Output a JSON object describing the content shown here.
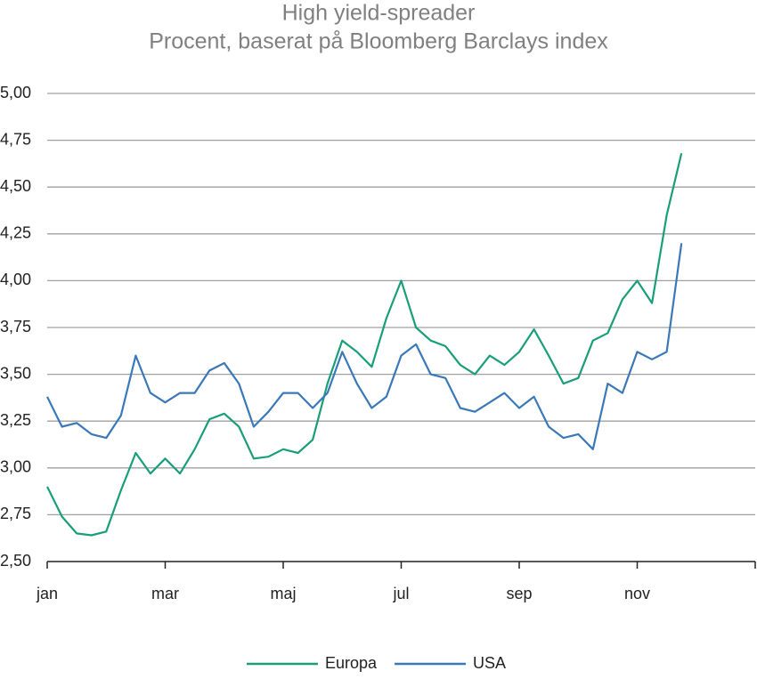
{
  "chart_data": {
    "type": "line",
    "title": "High yield-spreader",
    "subtitle": "Procent, baserat på Bloomberg Barclays index",
    "categories": [
      "jan",
      null,
      null,
      null,
      null,
      null,
      null,
      null,
      "mar",
      null,
      null,
      null,
      null,
      null,
      null,
      null,
      "maj",
      null,
      null,
      null,
      null,
      null,
      null,
      null,
      "jul",
      null,
      null,
      null,
      null,
      null,
      null,
      null,
      "sep",
      null,
      null,
      null,
      null,
      null,
      null,
      null,
      "nov",
      null,
      null,
      null,
      null,
      null,
      null,
      null
    ],
    "series": [
      {
        "name": "Europa",
        "color": "#1a9e7a",
        "values": [
          2.9,
          2.74,
          2.65,
          2.64,
          2.66,
          2.88,
          3.08,
          2.97,
          3.05,
          2.97,
          3.1,
          3.26,
          3.29,
          3.22,
          3.05,
          3.06,
          3.1,
          3.08,
          3.15,
          3.45,
          3.68,
          3.62,
          3.54,
          3.8,
          4.0,
          3.75,
          3.68,
          3.65,
          3.55,
          3.5,
          3.6,
          3.55,
          3.62,
          3.74,
          3.6,
          3.45,
          3.48,
          3.68,
          3.72,
          3.9,
          4.0,
          3.88,
          4.35,
          4.68,
          null,
          null,
          null,
          null
        ]
      },
      {
        "name": "USA",
        "color": "#3a78b8",
        "values": [
          3.38,
          3.22,
          3.24,
          3.18,
          3.16,
          3.28,
          3.6,
          3.4,
          3.35,
          3.4,
          3.4,
          3.52,
          3.56,
          3.45,
          3.22,
          3.3,
          3.4,
          3.4,
          3.32,
          3.4,
          3.62,
          3.45,
          3.32,
          3.38,
          3.6,
          3.66,
          3.5,
          3.48,
          3.32,
          3.3,
          3.35,
          3.4,
          3.32,
          3.38,
          3.22,
          3.16,
          3.18,
          3.1,
          3.45,
          3.4,
          3.62,
          3.58,
          3.62,
          4.2,
          null,
          null,
          null,
          null
        ]
      }
    ],
    "ylim": [
      2.5,
      5.0
    ],
    "yticks": [
      {
        "value": 2.5,
        "label": "2,50"
      },
      {
        "value": 2.75,
        "label": "2,75"
      },
      {
        "value": 3.0,
        "label": "3,00"
      },
      {
        "value": 3.25,
        "label": "3,25"
      },
      {
        "value": 3.5,
        "label": "3,50"
      },
      {
        "value": 3.75,
        "label": "3,75"
      },
      {
        "value": 4.0,
        "label": "4,00"
      },
      {
        "value": 4.25,
        "label": "4,25"
      },
      {
        "value": 4.5,
        "label": "4,50"
      },
      {
        "value": 4.75,
        "label": "4,75"
      },
      {
        "value": 5.0,
        "label": "5,00"
      }
    ],
    "grid": true,
    "legend": "bottom"
  }
}
